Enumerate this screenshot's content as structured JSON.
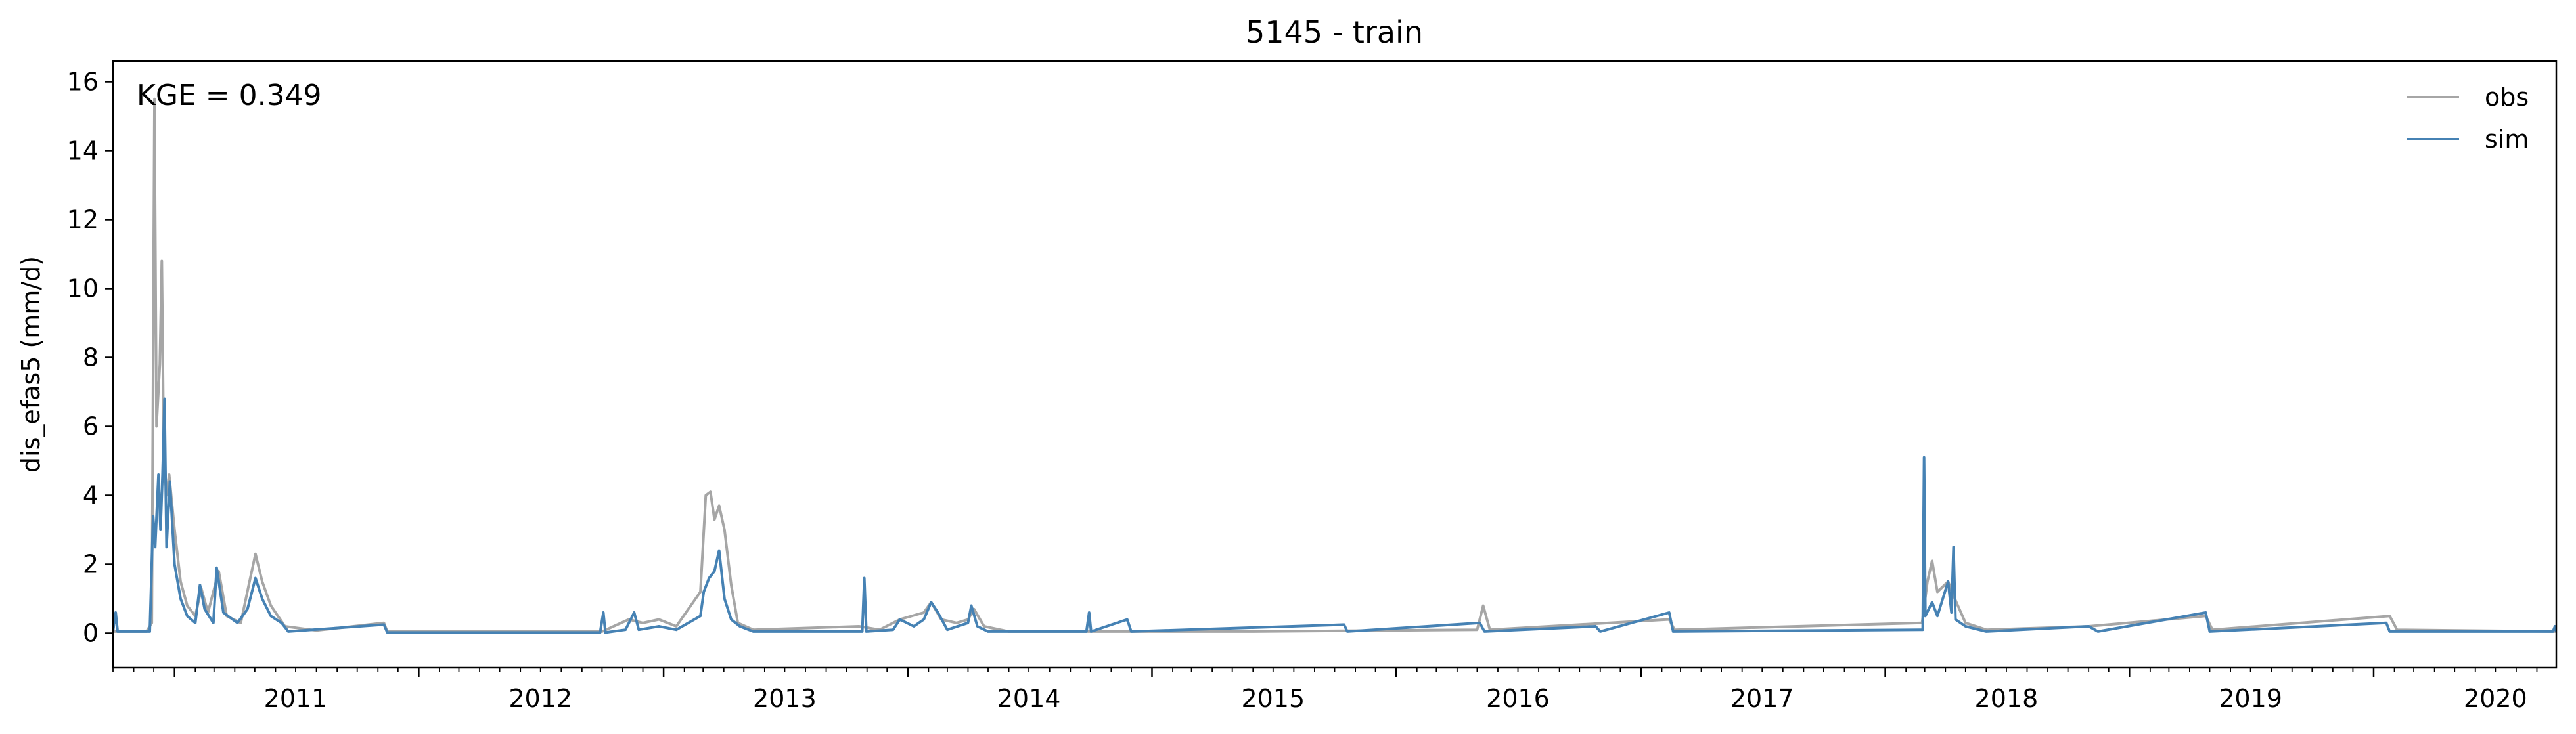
{
  "chart_data": {
    "type": "line",
    "title": "5145 - train",
    "xlabel": "",
    "ylabel": "dis_efas5 (mm/d)",
    "annotation": "KGE = 0.349",
    "x_range": [
      "2010-10-01",
      "2020-09-30"
    ],
    "xticks": [
      "2011",
      "2012",
      "2013",
      "2014",
      "2015",
      "2016",
      "2017",
      "2018",
      "2019",
      "2020"
    ],
    "ylim": [
      -1.0,
      16.6
    ],
    "yticks": [
      "0",
      "2",
      "4",
      "6",
      "8",
      "10",
      "12",
      "14",
      "16"
    ],
    "grid": false,
    "legend_position": "top-right",
    "series": [
      {
        "name": "obs",
        "color": "#a6a6a6",
        "points": [
          [
            "2010-10-01",
            0.05
          ],
          [
            "2010-11-20",
            0.05
          ],
          [
            "2010-11-28",
            0.3
          ],
          [
            "2010-12-02",
            15.5
          ],
          [
            "2010-12-05",
            6.0
          ],
          [
            "2010-12-10",
            7.8
          ],
          [
            "2010-12-13",
            10.8
          ],
          [
            "2010-12-16",
            5.0
          ],
          [
            "2010-12-20",
            4.0
          ],
          [
            "2010-12-24",
            4.6
          ],
          [
            "2011-01-01",
            3.0
          ],
          [
            "2011-01-10",
            1.5
          ],
          [
            "2011-01-20",
            0.8
          ],
          [
            "2011-02-01",
            0.5
          ],
          [
            "2011-02-10",
            1.3
          ],
          [
            "2011-02-20",
            0.6
          ],
          [
            "2011-03-08",
            1.8
          ],
          [
            "2011-03-20",
            0.5
          ],
          [
            "2011-04-10",
            0.3
          ],
          [
            "2011-04-22",
            1.4
          ],
          [
            "2011-05-02",
            2.3
          ],
          [
            "2011-05-12",
            1.5
          ],
          [
            "2011-05-25",
            0.8
          ],
          [
            "2011-06-15",
            0.2
          ],
          [
            "2011-08-01",
            0.08
          ],
          [
            "2011-11-10",
            0.3
          ],
          [
            "2011-11-15",
            0.05
          ],
          [
            "2012-10-01",
            0.05
          ],
          [
            "2012-11-10",
            0.4
          ],
          [
            "2012-12-01",
            0.3
          ],
          [
            "2012-12-25",
            0.4
          ],
          [
            "2013-01-20",
            0.2
          ],
          [
            "2013-02-25",
            1.2
          ],
          [
            "2013-03-05",
            4.0
          ],
          [
            "2013-03-12",
            4.1
          ],
          [
            "2013-03-18",
            3.3
          ],
          [
            "2013-03-25",
            3.7
          ],
          [
            "2013-04-02",
            3.0
          ],
          [
            "2013-04-12",
            1.4
          ],
          [
            "2013-04-22",
            0.3
          ],
          [
            "2013-05-15",
            0.1
          ],
          [
            "2013-10-20",
            0.2
          ],
          [
            "2013-11-20",
            0.1
          ],
          [
            "2013-12-20",
            0.4
          ],
          [
            "2014-01-25",
            0.6
          ],
          [
            "2014-02-05",
            0.9
          ],
          [
            "2014-02-20",
            0.4
          ],
          [
            "2014-03-15",
            0.3
          ],
          [
            "2014-04-01",
            0.4
          ],
          [
            "2014-04-10",
            0.7
          ],
          [
            "2014-04-25",
            0.2
          ],
          [
            "2014-06-01",
            0.05
          ],
          [
            "2015-06-01",
            0.05
          ],
          [
            "2016-05-01",
            0.1
          ],
          [
            "2016-05-10",
            0.8
          ],
          [
            "2016-05-20",
            0.1
          ],
          [
            "2017-02-12",
            0.4
          ],
          [
            "2017-02-20",
            0.1
          ],
          [
            "2018-02-25",
            0.3
          ],
          [
            "2018-03-05",
            1.5
          ],
          [
            "2018-03-12",
            2.1
          ],
          [
            "2018-03-20",
            1.2
          ],
          [
            "2018-04-05",
            1.5
          ],
          [
            "2018-04-15",
            1.0
          ],
          [
            "2018-05-01",
            0.3
          ],
          [
            "2018-06-01",
            0.1
          ],
          [
            "2018-11-01",
            0.2
          ],
          [
            "2019-04-25",
            0.5
          ],
          [
            "2019-05-05",
            0.1
          ],
          [
            "2020-01-25",
            0.5
          ],
          [
            "2020-02-05",
            0.1
          ],
          [
            "2020-09-30",
            0.05
          ]
        ]
      },
      {
        "name": "sim",
        "color": "#4682b4",
        "points": [
          [
            "2010-10-01",
            0.05
          ],
          [
            "2010-10-05",
            0.6
          ],
          [
            "2010-10-08",
            0.05
          ],
          [
            "2010-11-25",
            0.05
          ],
          [
            "2010-11-30",
            3.4
          ],
          [
            "2010-12-03",
            2.5
          ],
          [
            "2010-12-08",
            4.6
          ],
          [
            "2010-12-11",
            3.0
          ],
          [
            "2010-12-14",
            4.6
          ],
          [
            "2010-12-17",
            6.8
          ],
          [
            "2010-12-20",
            2.5
          ],
          [
            "2010-12-25",
            4.4
          ],
          [
            "2011-01-01",
            2.0
          ],
          [
            "2011-01-10",
            1.0
          ],
          [
            "2011-01-20",
            0.5
          ],
          [
            "2011-02-01",
            0.3
          ],
          [
            "2011-02-08",
            1.4
          ],
          [
            "2011-02-15",
            0.7
          ],
          [
            "2011-02-28",
            0.3
          ],
          [
            "2011-03-05",
            1.9
          ],
          [
            "2011-03-15",
            0.6
          ],
          [
            "2011-04-05",
            0.3
          ],
          [
            "2011-04-20",
            0.7
          ],
          [
            "2011-05-02",
            1.6
          ],
          [
            "2011-05-12",
            1.0
          ],
          [
            "2011-05-25",
            0.5
          ],
          [
            "2011-06-10",
            0.3
          ],
          [
            "2011-06-20",
            0.05
          ],
          [
            "2011-11-10",
            0.25
          ],
          [
            "2011-11-15",
            0.02
          ],
          [
            "2012-09-28",
            0.02
          ],
          [
            "2012-10-03",
            0.6
          ],
          [
            "2012-10-06",
            0.02
          ],
          [
            "2012-11-05",
            0.1
          ],
          [
            "2012-11-18",
            0.6
          ],
          [
            "2012-11-25",
            0.1
          ],
          [
            "2012-12-25",
            0.2
          ],
          [
            "2013-01-20",
            0.1
          ],
          [
            "2013-02-25",
            0.5
          ],
          [
            "2013-03-02",
            1.2
          ],
          [
            "2013-03-10",
            1.6
          ],
          [
            "2013-03-18",
            1.8
          ],
          [
            "2013-03-25",
            2.4
          ],
          [
            "2013-04-02",
            1.0
          ],
          [
            "2013-04-12",
            0.4
          ],
          [
            "2013-04-25",
            0.2
          ],
          [
            "2013-05-15",
            0.05
          ],
          [
            "2013-10-25",
            0.05
          ],
          [
            "2013-10-28",
            1.6
          ],
          [
            "2013-10-31",
            0.05
          ],
          [
            "2013-12-10",
            0.1
          ],
          [
            "2013-12-20",
            0.4
          ],
          [
            "2014-01-10",
            0.2
          ],
          [
            "2014-01-25",
            0.4
          ],
          [
            "2014-02-05",
            0.9
          ],
          [
            "2014-02-15",
            0.6
          ],
          [
            "2014-03-01",
            0.1
          ],
          [
            "2014-04-01",
            0.3
          ],
          [
            "2014-04-06",
            0.8
          ],
          [
            "2014-04-15",
            0.2
          ],
          [
            "2014-05-01",
            0.05
          ],
          [
            "2014-09-25",
            0.05
          ],
          [
            "2014-09-29",
            0.6
          ],
          [
            "2014-10-02",
            0.05
          ],
          [
            "2014-11-25",
            0.4
          ],
          [
            "2014-12-01",
            0.05
          ],
          [
            "2015-10-15",
            0.25
          ],
          [
            "2015-10-20",
            0.05
          ],
          [
            "2016-05-05",
            0.3
          ],
          [
            "2016-05-12",
            0.05
          ],
          [
            "2016-10-25",
            0.2
          ],
          [
            "2016-11-01",
            0.05
          ],
          [
            "2017-02-12",
            0.6
          ],
          [
            "2017-02-18",
            0.05
          ],
          [
            "2018-02-26",
            0.1
          ],
          [
            "2018-02-28",
            5.1
          ],
          [
            "2018-03-02",
            0.5
          ],
          [
            "2018-03-12",
            0.9
          ],
          [
            "2018-03-20",
            0.5
          ],
          [
            "2018-04-05",
            1.5
          ],
          [
            "2018-04-10",
            0.6
          ],
          [
            "2018-04-13",
            2.5
          ],
          [
            "2018-04-16",
            0.4
          ],
          [
            "2018-05-01",
            0.2
          ],
          [
            "2018-06-01",
            0.05
          ],
          [
            "2018-11-01",
            0.2
          ],
          [
            "2018-11-15",
            0.05
          ],
          [
            "2019-04-25",
            0.6
          ],
          [
            "2019-05-01",
            0.05
          ],
          [
            "2020-01-20",
            0.3
          ],
          [
            "2020-01-25",
            0.05
          ],
          [
            "2020-09-25",
            0.05
          ],
          [
            "2020-09-28",
            0.2
          ],
          [
            "2020-09-30",
            0.05
          ]
        ]
      }
    ]
  }
}
